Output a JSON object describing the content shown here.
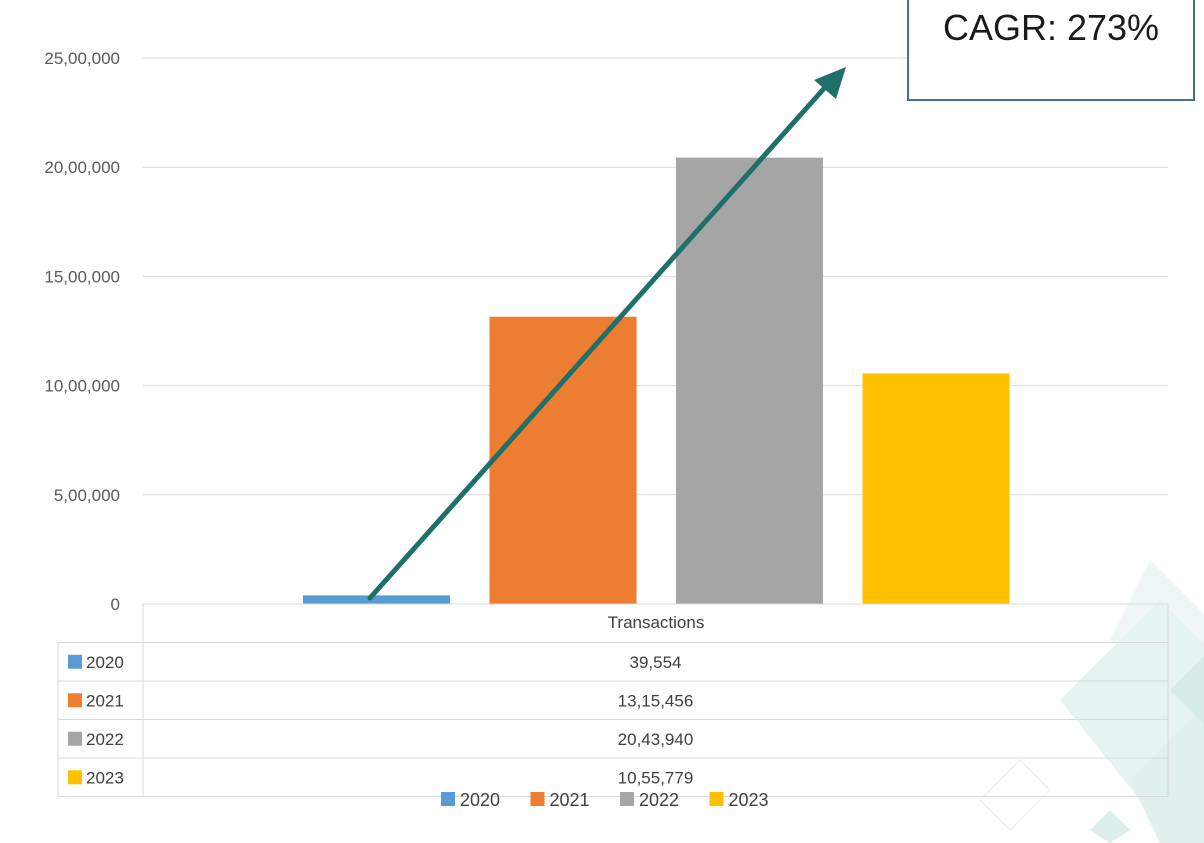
{
  "chart_data": {
    "type": "bar",
    "categories": [
      "2020",
      "2021",
      "2022",
      "2023"
    ],
    "values": [
      39554,
      1315456,
      2043940,
      1055779
    ],
    "value_labels": [
      "39,554",
      "13,15,456",
      "20,43,940",
      "10,55,779"
    ],
    "table_header": "Transactions",
    "yticks": [
      "0",
      "5,00,000",
      "10,00,000",
      "15,00,000",
      "20,00,000",
      "25,00,000"
    ],
    "ylim": [
      0,
      2500000
    ],
    "grid": true,
    "legend_position": "bottom",
    "colors": [
      "#5B9BD5",
      "#ED7D31",
      "#A5A5A5",
      "#FFC000"
    ],
    "annotation": "CAGR: 273%",
    "arrow_color": "#1F6F6A"
  }
}
